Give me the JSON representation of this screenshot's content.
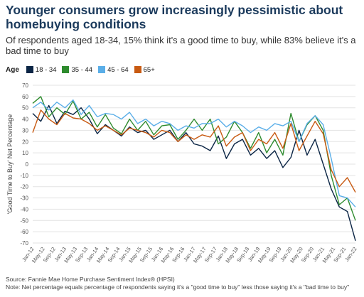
{
  "header": {
    "title": "Younger consumers grow increasingly pessimistic about homebuying conditions",
    "subtitle": "Of respondents aged 18-34, 15% think it's a good time to buy, while 83% believe it's a bad time to buy"
  },
  "legend": {
    "title": "Age"
  },
  "footer": {
    "source": "Source: Fannie Mae Home Purchase Sentiment Index® (HPSI)",
    "note": "Note: Net percentage equals percentage of respondents saying it's a \"good time to buy\" less those saying it's a \"bad time to buy\""
  },
  "chart_data": {
    "type": "line",
    "title": "Younger consumers grow increasingly pessimistic about homebuying conditions",
    "ylabel": "'Good Time to Buy' Net Percentage",
    "xlabel": "",
    "ylim": [
      -70,
      70
    ],
    "yticks": [
      70,
      60,
      50,
      40,
      30,
      20,
      10,
      0,
      -10,
      -20,
      -30,
      -40,
      -50,
      -60,
      -70
    ],
    "grid": true,
    "legend_position": "top-left",
    "x_tick_labels": [
      "Jan-12",
      "May-12",
      "Sep-12",
      "Jan-13",
      "May-13",
      "Sep-13",
      "Jan-14",
      "May-14",
      "Sep-14",
      "Jan-15",
      "May-15",
      "Sep-15",
      "Jan-16",
      "May-16",
      "Sep-16",
      "Jan-17",
      "May-17",
      "Sep-17",
      "Jan-18",
      "May-18",
      "Sep-18",
      "Jan-19",
      "May-19",
      "Sep-19",
      "Jan-20",
      "May-20",
      "Sep-20",
      "Jan-21",
      "May-21",
      "Sep-21",
      "Jan-22"
    ],
    "x": [
      "Jan-12",
      "Apr-12",
      "Jul-12",
      "Oct-12",
      "Jan-13",
      "Apr-13",
      "Jul-13",
      "Oct-13",
      "Jan-14",
      "Apr-14",
      "Jul-14",
      "Oct-14",
      "Jan-15",
      "Apr-15",
      "Jul-15",
      "Oct-15",
      "Jan-16",
      "Apr-16",
      "Jul-16",
      "Oct-16",
      "Jan-17",
      "Apr-17",
      "Jul-17",
      "Oct-17",
      "Jan-18",
      "Apr-18",
      "Jul-18",
      "Oct-18",
      "Jan-19",
      "Apr-19",
      "Jul-19",
      "Oct-19",
      "Jan-20",
      "Apr-20",
      "Jul-20",
      "Oct-20",
      "Jan-21",
      "Apr-21",
      "Jul-21",
      "Oct-21",
      "Jan-22"
    ],
    "series": [
      {
        "name": "18 - 34",
        "color": "#0b2545",
        "values": [
          45,
          38,
          52,
          36,
          47,
          44,
          50,
          40,
          27,
          35,
          30,
          25,
          33,
          28,
          30,
          22,
          26,
          30,
          20,
          28,
          18,
          16,
          12,
          25,
          5,
          18,
          22,
          8,
          14,
          5,
          12,
          -3,
          6,
          30,
          8,
          22,
          0,
          -22,
          -38,
          -42,
          -68
        ]
      },
      {
        "name": "35 - 44",
        "color": "#2e8b2e",
        "values": [
          54,
          60,
          42,
          50,
          44,
          56,
          40,
          46,
          33,
          44,
          32,
          27,
          40,
          30,
          38,
          26,
          34,
          35,
          22,
          30,
          40,
          30,
          40,
          18,
          24,
          38,
          28,
          14,
          28,
          10,
          22,
          8,
          45,
          20,
          35,
          43,
          30,
          -10,
          -36,
          -30,
          -50
        ]
      },
      {
        "name": "45 - 64",
        "color": "#5aaee8",
        "values": [
          50,
          55,
          48,
          55,
          50,
          57,
          44,
          52,
          42,
          45,
          44,
          40,
          46,
          36,
          40,
          34,
          38,
          36,
          30,
          34,
          32,
          36,
          36,
          40,
          33,
          38,
          34,
          28,
          33,
          30,
          36,
          34,
          38,
          20,
          36,
          43,
          35,
          5,
          -28,
          -30,
          -38
        ]
      },
      {
        "name": "65+",
        "color": "#c85a12",
        "values": [
          28,
          48,
          40,
          35,
          45,
          41,
          40,
          36,
          30,
          34,
          30,
          26,
          32,
          30,
          28,
          24,
          30,
          28,
          20,
          26,
          22,
          26,
          24,
          34,
          16,
          24,
          28,
          12,
          22,
          18,
          28,
          14,
          36,
          12,
          25,
          38,
          27,
          -5,
          -20,
          -12,
          -25
        ]
      }
    ]
  }
}
